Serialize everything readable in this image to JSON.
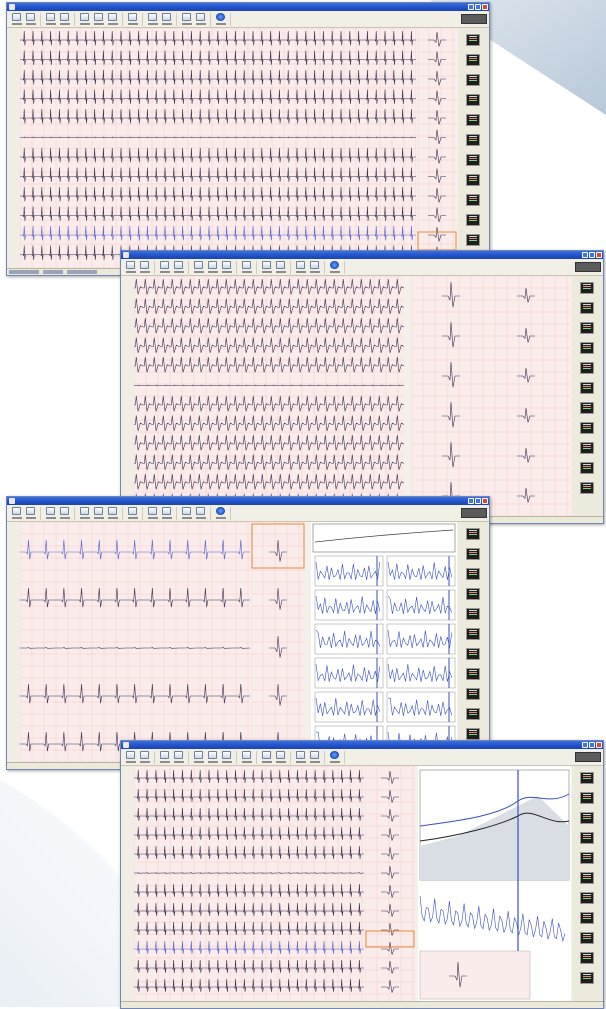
{
  "windows": [
    {
      "title": "",
      "variant": "ecg-12lead",
      "beats": 45
    },
    {
      "title": "",
      "variant": "ecg-wide-complex",
      "beats": 30
    },
    {
      "title": "",
      "variant": "ecg-trends",
      "beats": 13
    },
    {
      "title": "",
      "variant": "ecg-trend-plot",
      "beats": 26
    }
  ],
  "colors": {
    "titlebar": "#2250c8",
    "grid": "#f2c4c4",
    "trace": "#3a2f4f",
    "trace_highlight": "#5560c8",
    "trend": "#3a4fc4",
    "highlight_box": "#e58a3a",
    "swoosh": "#c9d6e3"
  },
  "icons": [
    "window-close-icon",
    "window-maximize-icon",
    "window-minimize-icon",
    "toolbar-open-icon",
    "toolbar-save-icon",
    "toolbar-print-icon",
    "toolbar-globe-icon"
  ]
}
